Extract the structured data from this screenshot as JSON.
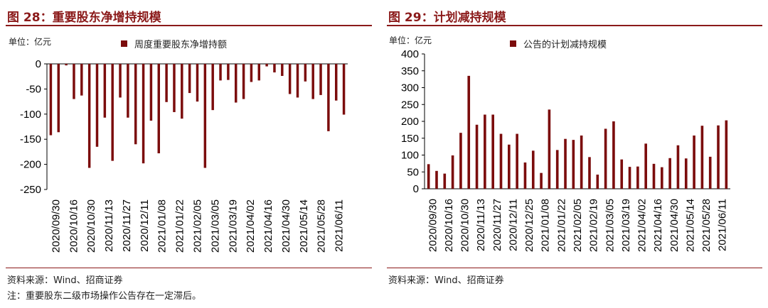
{
  "left": {
    "title": "图 28：重要股东净增持规模",
    "unit": "单位：亿元",
    "source": "资料来源：Wind、招商证券",
    "note": "注：重要股东二级市场操作公告存在一定滞后。"
  },
  "right": {
    "title": "图 29：计划减持规模",
    "unit": "单位：亿元",
    "source": "资料来源：Wind、招商证券"
  },
  "colors": {
    "bar": "#7b0c0c",
    "title": "#8b1a1a"
  },
  "chart_data": [
    {
      "type": "bar",
      "legend_position": "top",
      "series": [
        {
          "name": "周度重要股东净增持额",
          "values": [
            -142,
            -136,
            -3,
            -70,
            -63,
            -207,
            -165,
            -107,
            -193,
            -67,
            -107,
            -160,
            -198,
            -113,
            -178,
            -76,
            -96,
            -109,
            -58,
            -75,
            -207,
            -92,
            -33,
            -32,
            -77,
            -70,
            -36,
            -33,
            -5,
            -17,
            -24,
            -60,
            -67,
            -35,
            -70,
            -62,
            -134,
            -73,
            -101
          ]
        }
      ],
      "tick_labels": [
        "2020/09/30",
        "2020/10/16",
        "2020/10/30",
        "2020/11/13",
        "2020/11/27",
        "2020/12/11",
        "2021/01/08",
        "2021/01/22",
        "2021/02/05",
        "2021/03/05",
        "2021/03/19",
        "2021/04/02",
        "2021/04/16",
        "2021/04/30",
        "2021/05/14",
        "2021/05/28",
        "2021/06/11"
      ],
      "ylim": [
        -250,
        0
      ],
      "yticks": [
        0,
        -50,
        -100,
        -150,
        -200,
        -250
      ],
      "grid": false
    },
    {
      "type": "bar",
      "legend_position": "top",
      "series": [
        {
          "name": "公告的计划减持规模",
          "values": [
            73,
            53,
            45,
            99,
            166,
            335,
            190,
            220,
            220,
            163,
            131,
            163,
            78,
            113,
            47,
            235,
            115,
            148,
            145,
            158,
            94,
            42,
            178,
            200,
            87,
            65,
            66,
            134,
            74,
            64,
            91,
            129,
            90,
            158,
            187,
            95,
            188,
            203
          ]
        }
      ],
      "tick_labels": [
        "2020/09/30",
        "2020/10/16",
        "2020/10/30",
        "2020/11/13",
        "2020/11/27",
        "2020/12/11",
        "2020/12/25",
        "2021/01/08",
        "2021/01/22",
        "2021/02/05",
        "2021/02/19",
        "2021/03/05",
        "2021/03/19",
        "2021/04/02",
        "2021/04/16",
        "2021/04/30",
        "2021/05/14",
        "2021/05/28",
        "2021/06/11"
      ],
      "ylim": [
        0,
        400
      ],
      "yticks": [
        0,
        50,
        100,
        150,
        200,
        250,
        300,
        350,
        400
      ],
      "grid": false
    }
  ]
}
